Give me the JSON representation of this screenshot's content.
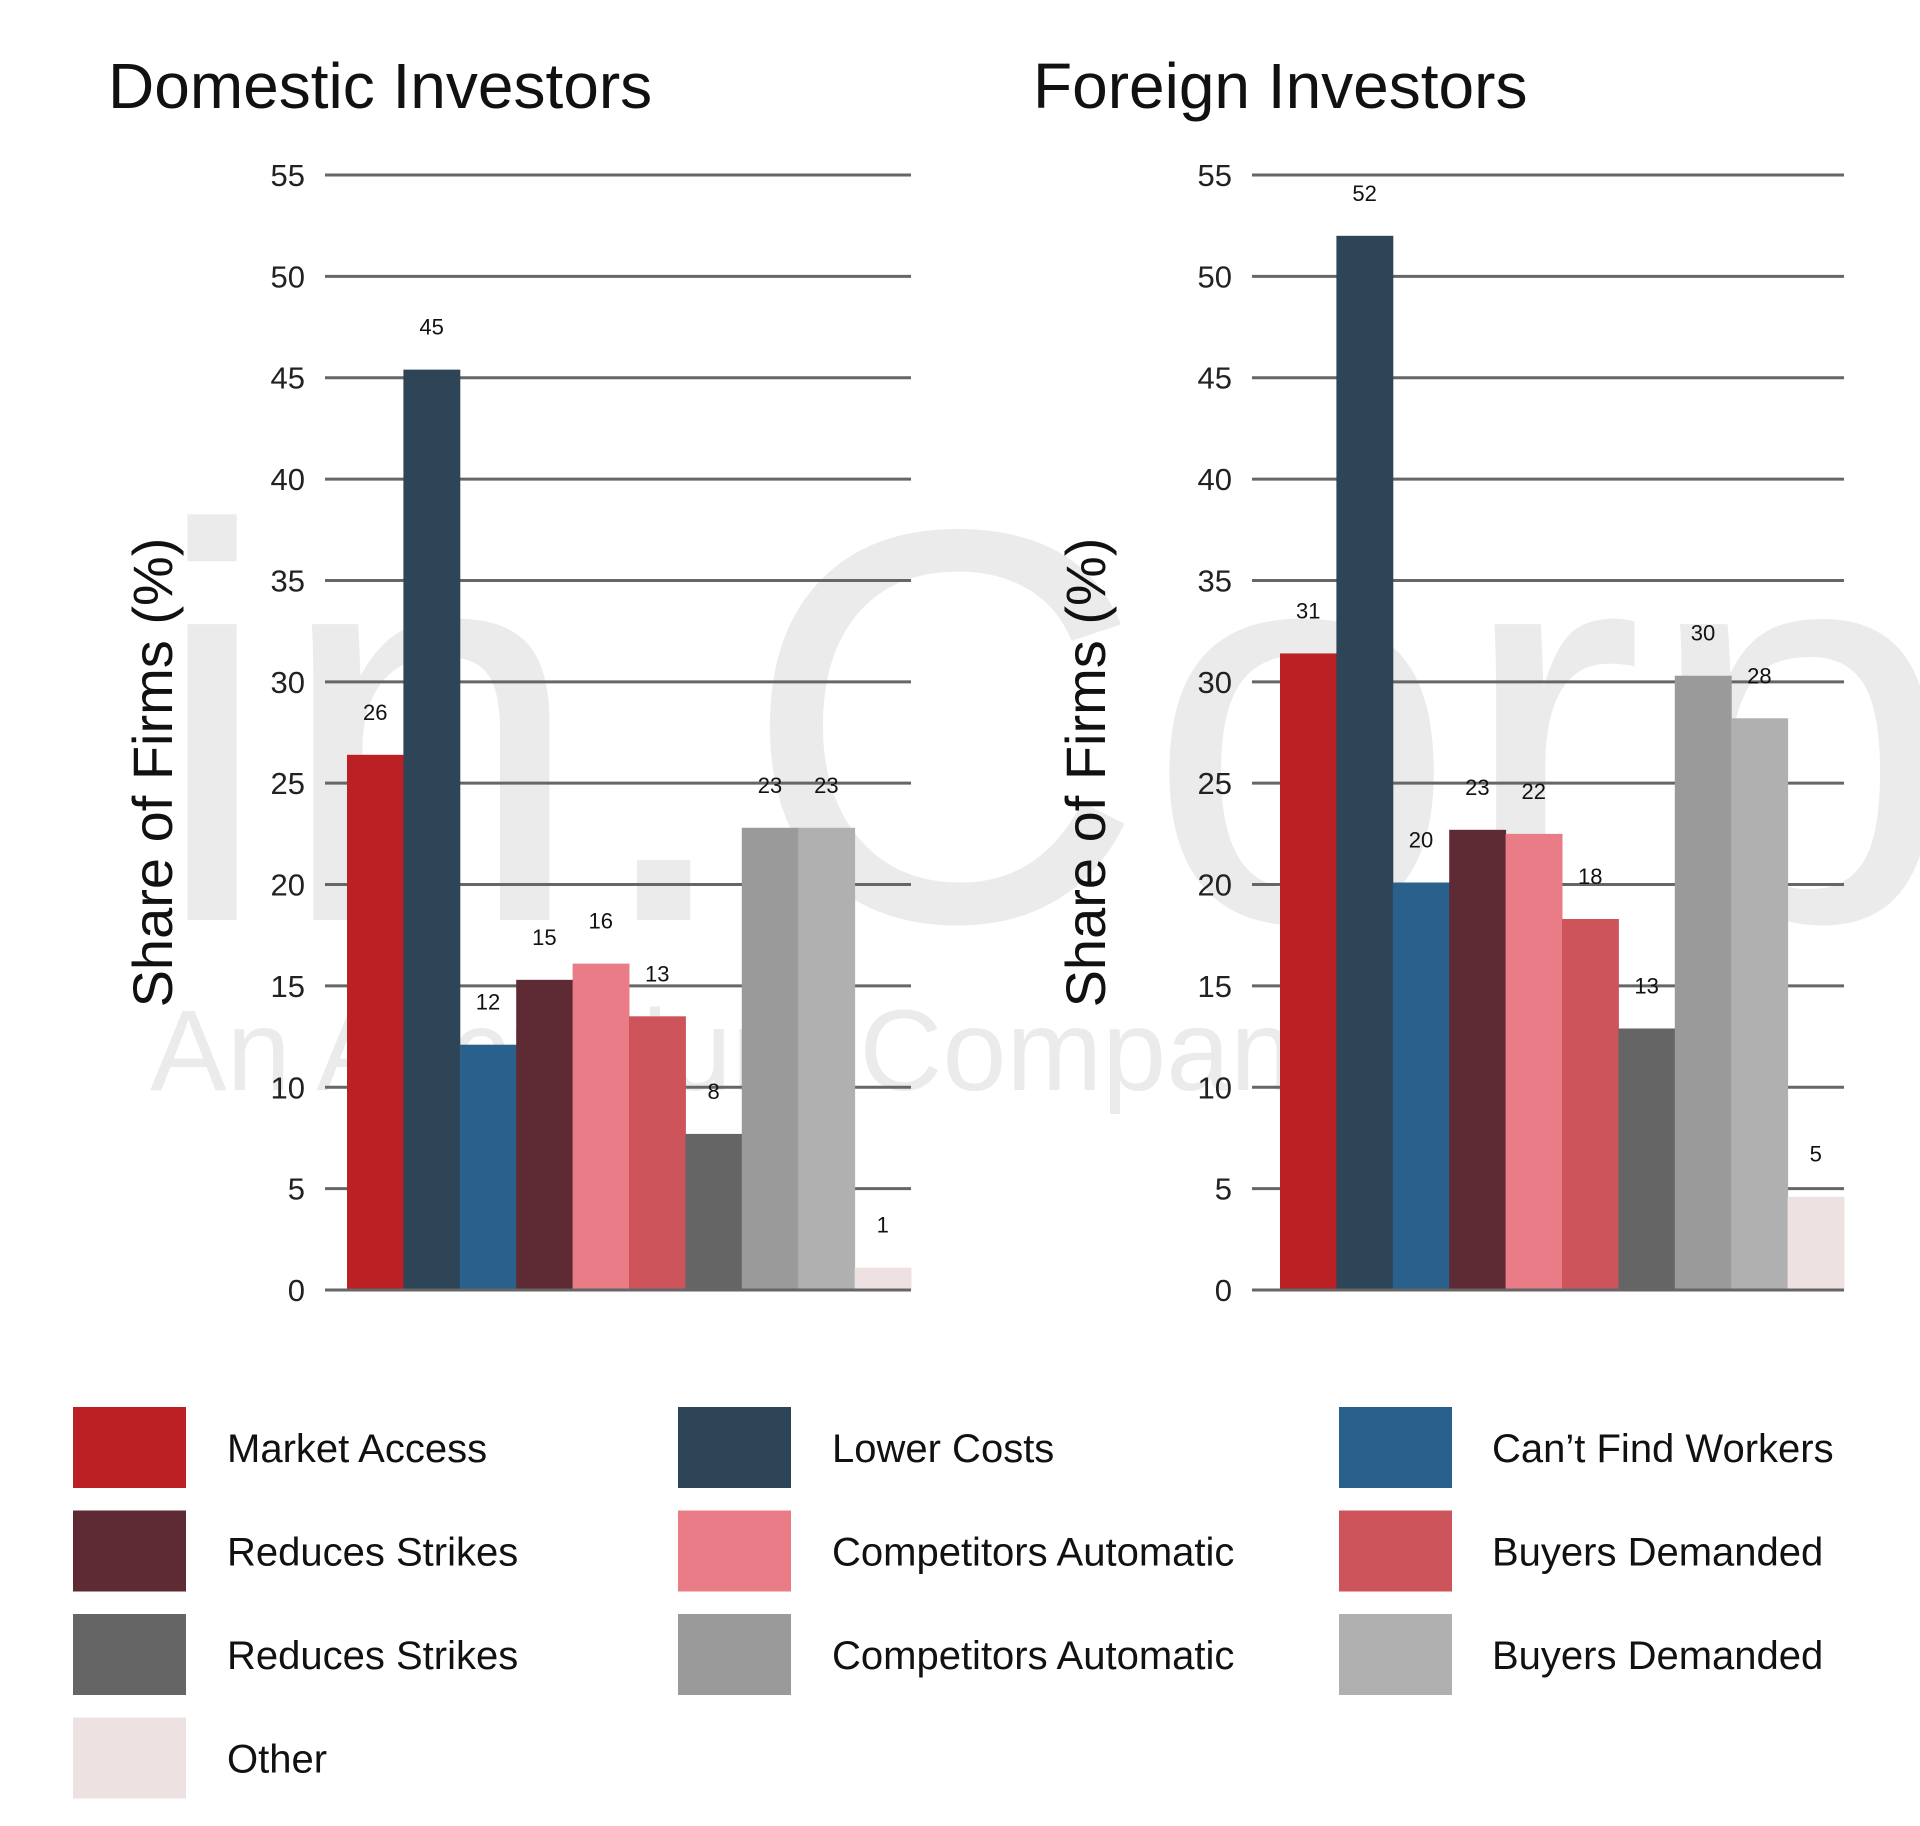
{
  "watermark": {
    "logo": "in.Corp",
    "tagline": "An Accretium Company"
  },
  "colors": {
    "Market Access": "#BB2024",
    "Lower Costs": "#2E4457",
    "Can't Find Workers": "#29608C",
    "Reduces Strikes 1": "#5E2B35",
    "Competitors Automatic 1": "#E97C86",
    "Buyers Demanded 1": "#CC545A",
    "Reduces Strikes 2": "#656565",
    "Competitors Automatic 2": "#9A9A9A",
    "Buyers Demanded 2": "#B0B0B0",
    "Other": "#EDE1E1"
  },
  "chart_data": [
    {
      "type": "bar",
      "title": "Domestic Investors",
      "ylabel": "Share of Firms (%)",
      "xlabel": "",
      "ylim": [
        0,
        55
      ],
      "yticks": [
        "0",
        "5",
        "10",
        "15",
        "20",
        "25",
        "30",
        "35",
        "40",
        "45",
        "50",
        "55"
      ],
      "grid": true,
      "categories": [
        "Market Access",
        "Lower Costs",
        "Can’t Find Workers",
        "Reduces Strikes",
        "Competitors Automatic",
        "Buyers Demanded",
        "Reduces Strikes",
        "Competitors Automatic",
        "Buyers Demanded",
        "Other"
      ],
      "values": [
        26.4,
        45.4,
        12.1,
        15.3,
        16.1,
        13.5,
        7.7,
        22.8,
        22.8,
        1.1
      ],
      "labels": [
        "26",
        "45",
        "12",
        "15",
        "16",
        "13",
        "8",
        "23",
        "23",
        "1"
      ]
    },
    {
      "type": "bar",
      "title": "Foreign Investors",
      "ylabel": "Share of Firms (%)",
      "xlabel": "",
      "ylim": [
        0,
        55
      ],
      "yticks": [
        "0",
        "5",
        "10",
        "15",
        "20",
        "25",
        "30",
        "35",
        "40",
        "45",
        "50",
        "55"
      ],
      "grid": true,
      "categories": [
        "Market Access",
        "Lower Costs",
        "Can’t Find Workers",
        "Reduces Strikes",
        "Competitors Automatic",
        "Buyers Demanded",
        "Reduces Strikes",
        "Competitors Automatic",
        "Buyers Demanded",
        "Other"
      ],
      "values": [
        31.4,
        52.0,
        20.1,
        22.7,
        22.5,
        18.3,
        12.9,
        30.3,
        28.2,
        4.6
      ],
      "labels": [
        "31",
        "52",
        "20",
        "23",
        "22",
        "18",
        "13",
        "30",
        "28",
        "5"
      ]
    }
  ],
  "legend": {
    "placement": "bottom",
    "items": [
      {
        "label": "Market Access",
        "color": "#BB2024"
      },
      {
        "label": "Lower Costs",
        "color": "#2E4457"
      },
      {
        "label": "Can’t Find Workers",
        "color": "#29608C"
      },
      {
        "label": "Reduces Strikes",
        "color": "#5E2B35"
      },
      {
        "label": "Competitors Automatic",
        "color": "#E97C86"
      },
      {
        "label": "Buyers Demanded",
        "color": "#CC545A"
      },
      {
        "label": "Reduces Strikes",
        "color": "#656565"
      },
      {
        "label": "Competitors Automatic",
        "color": "#9A9A9A"
      },
      {
        "label": "Buyers Demanded",
        "color": "#B0B0B0"
      },
      {
        "label": "Other",
        "color": "#EDE1E1"
      }
    ]
  }
}
